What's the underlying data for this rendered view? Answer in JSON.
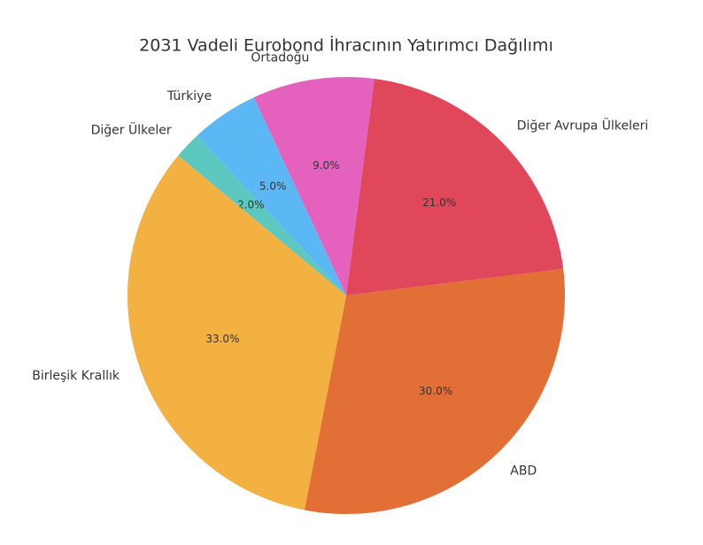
{
  "chart_data": {
    "type": "pie",
    "title": "2031 Vadeli Eurobond İhracının Yatırımcı Dağılımı",
    "categories": [
      "ABD",
      "Diğer Avrupa Ülkeleri",
      "Ortadoğu",
      "Türkiye",
      "Diğer Ülkeler",
      "Birleşik Krallık"
    ],
    "values": [
      30,
      21,
      9,
      5,
      2,
      33
    ],
    "value_labels": [
      "30.0%",
      "21.0%",
      "9.0%",
      "5.0%",
      "2.0%",
      "33.0%"
    ],
    "colors": [
      "#e27036",
      "#e0475b",
      "#e462bd",
      "#5bb8f5",
      "#5cc8c0",
      "#f2b140"
    ]
  }
}
